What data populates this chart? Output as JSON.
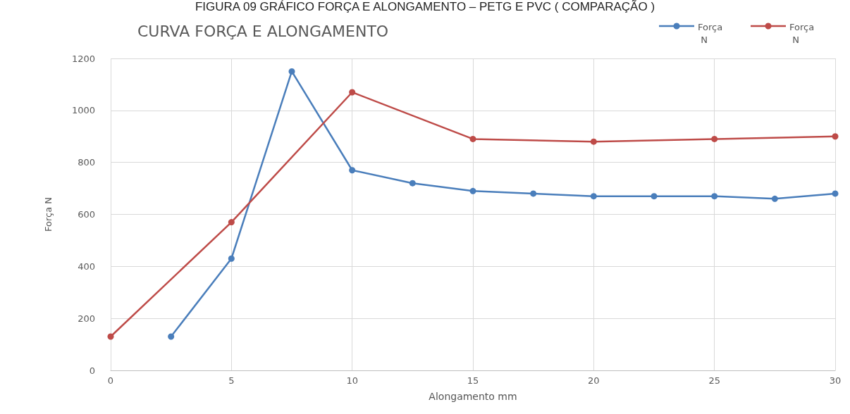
{
  "chart_data": {
    "type": "line",
    "title": "FIGURA 09 GRÁFICO FORÇA E ALONGAMENTO – PETG E PVC ( COMPARAÇÃO )",
    "subtitle": "CURVA FORÇA E ALONGAMENTO",
    "xlabel": "Alongamento mm",
    "ylabel": "Força N",
    "series": [
      {
        "name": "Força N",
        "color": "#4a7ebb",
        "x": [
          2.5,
          5,
          7.5,
          10,
          12.5,
          15,
          17.5,
          20,
          22.5,
          25,
          27.5,
          30
        ],
        "values": [
          130,
          430,
          1150,
          770,
          720,
          690,
          680,
          670,
          670,
          670,
          660,
          680
        ]
      },
      {
        "name": "Força N",
        "color": "#be4b48",
        "x": [
          0,
          5,
          10,
          15,
          20,
          25,
          30
        ],
        "values": [
          130,
          570,
          1070,
          890,
          880,
          890,
          900
        ]
      }
    ],
    "xlim": [
      0,
      30
    ],
    "xticks": [
      0,
      5,
      10,
      15,
      20,
      25,
      30
    ],
    "ylim": [
      0,
      1200
    ],
    "yticks": [
      0,
      200,
      400,
      600,
      800,
      1000,
      1200
    ],
    "grid": true,
    "legend": "top right",
    "marker": "circle",
    "line_style": "solid"
  }
}
